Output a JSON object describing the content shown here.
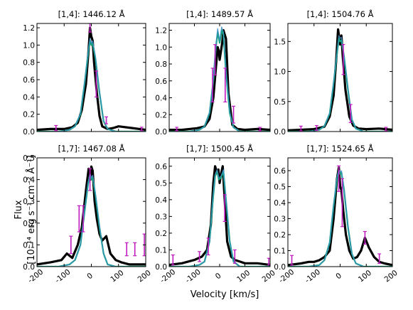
{
  "figure": {
    "xlabel": "Velocity [km/s]",
    "ylabel_line1": "Flux",
    "ylabel_line2": "[10⁻¹⁴ erg s⁻¹ cm⁻² Å⁻¹]"
  },
  "colors": {
    "observed": "#000000",
    "model_teal": "#11a07a",
    "model_blue": "#3f8fc9",
    "error_bars": "#c01cc0"
  },
  "chart_data": [
    {
      "type": "line",
      "title": "[1,4]: 1446.12 Å",
      "xlim": [
        -200,
        200
      ],
      "ylim": [
        0,
        1.25
      ],
      "yticks": [
        0.0,
        0.2,
        0.4,
        0.6,
        0.8,
        1.0,
        1.2
      ],
      "yfmt": 1,
      "xticks": [],
      "grid": false,
      "series": [
        {
          "x": [
            -200,
            -150,
            -100,
            -70,
            -50,
            -35,
            -20,
            -10,
            -5,
            0,
            5,
            10,
            20,
            30,
            40,
            60,
            80,
            100,
            150,
            200
          ],
          "y": [
            0.02,
            0.03,
            0.03,
            0.05,
            0.1,
            0.25,
            0.55,
            0.95,
            1.2,
            1.1,
            1.05,
            0.8,
            0.45,
            0.18,
            0.06,
            0.03,
            0.04,
            0.06,
            0.04,
            0.02
          ]
        },
        {
          "x": [
            -200,
            -120,
            -80,
            -60,
            -40,
            -25,
            -10,
            -5,
            0,
            5,
            15,
            30,
            45,
            60,
            90,
            200
          ],
          "y": [
            0.0,
            0.0,
            0.02,
            0.06,
            0.2,
            0.55,
            0.95,
            1.05,
            1.0,
            1.02,
            0.85,
            0.45,
            0.12,
            0.03,
            0.0,
            0.0
          ]
        },
        {
          "x": [
            -200,
            -120,
            -80,
            -60,
            -40,
            -25,
            -10,
            -5,
            0,
            5,
            15,
            30,
            45,
            60,
            90,
            200
          ],
          "y": [
            0.0,
            0.0,
            0.02,
            0.06,
            0.21,
            0.56,
            0.97,
            1.08,
            1.02,
            1.05,
            0.87,
            0.46,
            0.13,
            0.03,
            0.0,
            0.0
          ]
        }
      ],
      "errorbars": [
        {
          "x": -130,
          "y": 0.04,
          "err": 0.03
        },
        {
          "x": -5,
          "y": 1.2,
          "err": 0.05
        },
        {
          "x": 18,
          "y": 0.55,
          "err": 0.15
        },
        {
          "x": 55,
          "y": 0.13,
          "err": 0.04
        },
        {
          "x": 185,
          "y": 0.03,
          "err": 0.02
        }
      ]
    },
    {
      "type": "line",
      "title": "[1,4]: 1489.57 Å",
      "xlim": [
        -200,
        200
      ],
      "ylim": [
        0,
        1.28
      ],
      "yticks": [
        0.0,
        0.2,
        0.4,
        0.6,
        0.8,
        1.0,
        1.2
      ],
      "yfmt": 1,
      "xticks": [],
      "grid": false,
      "series": [
        {
          "x": [
            -200,
            -150,
            -90,
            -60,
            -40,
            -25,
            -15,
            -8,
            -3,
            0,
            5,
            10,
            15,
            25,
            35,
            50,
            70,
            100,
            150,
            200
          ],
          "y": [
            0.02,
            0.02,
            0.04,
            0.06,
            0.15,
            0.4,
            0.75,
            1.0,
            0.95,
            0.85,
            0.95,
            1.05,
            1.2,
            1.1,
            0.45,
            0.08,
            0.03,
            0.02,
            0.03,
            0.02
          ]
        },
        {
          "x": [
            -200,
            -120,
            -80,
            -60,
            -40,
            -25,
            -15,
            -8,
            0,
            8,
            15,
            25,
            40,
            55,
            80,
            200
          ],
          "y": [
            0.0,
            0.0,
            0.02,
            0.06,
            0.22,
            0.6,
            1.0,
            1.18,
            1.05,
            1.2,
            1.15,
            0.7,
            0.22,
            0.05,
            0.0,
            0.0
          ]
        },
        {
          "x": [
            -200,
            -120,
            -80,
            -60,
            -40,
            -25,
            -15,
            -8,
            0,
            8,
            15,
            25,
            40,
            55,
            80,
            200
          ],
          "y": [
            0.0,
            0.0,
            0.02,
            0.06,
            0.23,
            0.62,
            1.02,
            1.22,
            1.08,
            1.24,
            1.18,
            0.72,
            0.23,
            0.05,
            0.0,
            0.0
          ]
        }
      ],
      "errorbars": [
        {
          "x": -170,
          "y": 0.03,
          "err": 0.02
        },
        {
          "x": -28,
          "y": 0.55,
          "err": 0.2
        },
        {
          "x": -18,
          "y": 0.85,
          "err": 0.18
        },
        {
          "x": 22,
          "y": 0.55,
          "err": 0.2
        },
        {
          "x": 55,
          "y": 0.2,
          "err": 0.1
        },
        {
          "x": 160,
          "y": 0.03,
          "err": 0.02
        }
      ]
    },
    {
      "type": "line",
      "title": "[1,4]: 1504.76 Å",
      "xlim": [
        -200,
        200
      ],
      "ylim": [
        0,
        1.8
      ],
      "yticks": [
        0.0,
        0.5,
        1.0,
        1.5
      ],
      "yfmt": 1,
      "xticks": [],
      "grid": false,
      "series": [
        {
          "x": [
            -200,
            -150,
            -100,
            -60,
            -40,
            -25,
            -15,
            -8,
            -3,
            0,
            5,
            10,
            20,
            35,
            50,
            70,
            100,
            150,
            200
          ],
          "y": [
            0.02,
            0.03,
            0.04,
            0.08,
            0.25,
            0.6,
            1.2,
            1.7,
            1.55,
            1.45,
            1.6,
            1.25,
            0.7,
            0.25,
            0.1,
            0.05,
            0.04,
            0.05,
            0.03
          ]
        },
        {
          "x": [
            -200,
            -120,
            -80,
            -60,
            -40,
            -25,
            -12,
            -5,
            0,
            5,
            15,
            30,
            45,
            60,
            90,
            200
          ],
          "y": [
            0.0,
            0.0,
            0.03,
            0.09,
            0.3,
            0.8,
            1.3,
            1.55,
            1.5,
            1.52,
            1.25,
            0.7,
            0.2,
            0.05,
            0.0,
            0.0
          ]
        },
        {
          "x": [
            -200,
            -120,
            -80,
            -60,
            -40,
            -25,
            -12,
            -5,
            0,
            5,
            15,
            30,
            45,
            60,
            90,
            200
          ],
          "y": [
            0.0,
            0.0,
            0.03,
            0.09,
            0.31,
            0.82,
            1.32,
            1.6,
            1.55,
            1.57,
            1.28,
            0.72,
            0.21,
            0.05,
            0.0,
            0.0
          ]
        }
      ],
      "errorbars": [
        {
          "x": -150,
          "y": 0.05,
          "err": 0.04
        },
        {
          "x": -90,
          "y": 0.06,
          "err": 0.04
        },
        {
          "x": 12,
          "y": 1.2,
          "err": 0.25
        },
        {
          "x": 40,
          "y": 0.3,
          "err": 0.15
        },
        {
          "x": 175,
          "y": 0.04,
          "err": 0.03
        }
      ]
    },
    {
      "type": "line",
      "title": "[1,7]: 1467.08 Å",
      "xlim": [
        -200,
        200
      ],
      "ylim": [
        0,
        0.5
      ],
      "yticks": [
        0.0,
        0.1,
        0.2,
        0.3,
        0.4,
        0.5
      ],
      "yfmt": 1,
      "xticks": [
        -200,
        -100,
        0,
        100,
        200
      ],
      "grid": false,
      "series": [
        {
          "x": [
            -200,
            -150,
            -110,
            -90,
            -70,
            -50,
            -35,
            -20,
            -10,
            -3,
            0,
            5,
            12,
            20,
            30,
            40,
            55,
            70,
            90,
            110,
            140,
            170,
            200
          ],
          "y": [
            0.01,
            0.02,
            0.03,
            0.06,
            0.04,
            0.1,
            0.18,
            0.35,
            0.45,
            0.4,
            0.46,
            0.44,
            0.3,
            0.22,
            0.15,
            0.12,
            0.14,
            0.06,
            0.03,
            0.02,
            0.01,
            0.01,
            0.01
          ]
        },
        {
          "x": [
            -200,
            -120,
            -80,
            -60,
            -40,
            -25,
            -12,
            -5,
            0,
            5,
            15,
            30,
            45,
            60,
            90,
            200
          ],
          "y": [
            0.0,
            0.0,
            0.01,
            0.03,
            0.1,
            0.25,
            0.38,
            0.42,
            0.4,
            0.41,
            0.33,
            0.18,
            0.06,
            0.01,
            0.0,
            0.0
          ]
        },
        {
          "x": [
            -200,
            -120,
            -80,
            -60,
            -40,
            -25,
            -12,
            -5,
            0,
            5,
            15,
            30,
            45,
            60,
            90,
            200
          ],
          "y": [
            0.0,
            0.0,
            0.01,
            0.03,
            0.1,
            0.25,
            0.39,
            0.43,
            0.41,
            0.42,
            0.34,
            0.19,
            0.06,
            0.01,
            0.0,
            0.0
          ]
        }
      ],
      "errorbars": [
        {
          "x": -75,
          "y": 0.1,
          "err": 0.04
        },
        {
          "x": -45,
          "y": 0.22,
          "err": 0.06
        },
        {
          "x": -30,
          "y": 0.22,
          "err": 0.06
        },
        {
          "x": -5,
          "y": 0.4,
          "err": 0.05
        },
        {
          "x": 130,
          "y": 0.08,
          "err": 0.03
        },
        {
          "x": 160,
          "y": 0.08,
          "err": 0.03
        },
        {
          "x": 195,
          "y": 0.1,
          "err": 0.05
        }
      ]
    },
    {
      "type": "line",
      "title": "[1,7]: 1500.45 Å",
      "xlim": [
        -200,
        200
      ],
      "ylim": [
        0,
        0.65
      ],
      "yticks": [
        0.0,
        0.1,
        0.2,
        0.3,
        0.4,
        0.5,
        0.6
      ],
      "yfmt": 1,
      "xticks": [
        -200,
        -100,
        0,
        100,
        200
      ],
      "grid": false,
      "series": [
        {
          "x": [
            -200,
            -150,
            -100,
            -70,
            -50,
            -35,
            -25,
            -18,
            -12,
            -5,
            0,
            5,
            12,
            20,
            30,
            45,
            60,
            80,
            100,
            150,
            200
          ],
          "y": [
            0.01,
            0.02,
            0.04,
            0.06,
            0.1,
            0.25,
            0.5,
            0.6,
            0.57,
            0.58,
            0.5,
            0.55,
            0.6,
            0.4,
            0.15,
            0.06,
            0.04,
            0.03,
            0.02,
            0.02,
            0.01
          ]
        },
        {
          "x": [
            -200,
            -120,
            -80,
            -60,
            -40,
            -28,
            -18,
            -10,
            -3,
            5,
            15,
            25,
            40,
            55,
            80,
            200
          ],
          "y": [
            0.0,
            0.0,
            0.01,
            0.03,
            0.15,
            0.38,
            0.54,
            0.57,
            0.52,
            0.53,
            0.57,
            0.4,
            0.15,
            0.03,
            0.0,
            0.0
          ]
        },
        {
          "x": [
            -200,
            -120,
            -80,
            -60,
            -40,
            -28,
            -18,
            -10,
            -3,
            5,
            15,
            25,
            40,
            55,
            80,
            200
          ],
          "y": [
            0.0,
            0.0,
            0.01,
            0.03,
            0.15,
            0.39,
            0.55,
            0.58,
            0.53,
            0.54,
            0.58,
            0.41,
            0.15,
            0.03,
            0.0,
            0.0
          ]
        }
      ],
      "errorbars": [
        {
          "x": -185,
          "y": 0.04,
          "err": 0.03
        },
        {
          "x": -80,
          "y": 0.06,
          "err": 0.03
        },
        {
          "x": -45,
          "y": 0.12,
          "err": 0.05
        },
        {
          "x": 20,
          "y": 0.35,
          "err": 0.08
        },
        {
          "x": 60,
          "y": 0.06,
          "err": 0.04
        },
        {
          "x": 195,
          "y": 0.03,
          "err": 0.02
        }
      ]
    },
    {
      "type": "line",
      "title": "[1,7]: 1524.65 Å",
      "xlim": [
        -200,
        200
      ],
      "ylim": [
        0,
        0.68
      ],
      "yticks": [
        0.0,
        0.1,
        0.2,
        0.3,
        0.4,
        0.5,
        0.6
      ],
      "yfmt": 1,
      "xticks": [
        -200,
        -100,
        0,
        100,
        200
      ],
      "grid": false,
      "series": [
        {
          "x": [
            -200,
            -150,
            -120,
            -100,
            -80,
            -60,
            -40,
            -25,
            -12,
            -5,
            0,
            5,
            12,
            22,
            35,
            50,
            65,
            80,
            95,
            110,
            130,
            150,
            170,
            200
          ],
          "y": [
            0.01,
            0.02,
            0.03,
            0.03,
            0.04,
            0.06,
            0.1,
            0.3,
            0.55,
            0.62,
            0.5,
            0.48,
            0.35,
            0.2,
            0.1,
            0.05,
            0.06,
            0.1,
            0.18,
            0.12,
            0.06,
            0.03,
            0.02,
            0.01
          ]
        },
        {
          "x": [
            -200,
            -120,
            -80,
            -60,
            -40,
            -25,
            -12,
            -5,
            0,
            5,
            15,
            30,
            45,
            60,
            90,
            200
          ],
          "y": [
            0.0,
            0.0,
            0.01,
            0.04,
            0.15,
            0.38,
            0.55,
            0.6,
            0.58,
            0.59,
            0.48,
            0.25,
            0.08,
            0.02,
            0.0,
            0.0
          ]
        },
        {
          "x": [
            -200,
            -120,
            -80,
            -60,
            -40,
            -25,
            -12,
            -5,
            0,
            5,
            15,
            30,
            45,
            60,
            90,
            200
          ],
          "y": [
            0.0,
            0.0,
            0.01,
            0.04,
            0.15,
            0.39,
            0.56,
            0.61,
            0.59,
            0.6,
            0.49,
            0.26,
            0.08,
            0.02,
            0.0,
            0.0
          ]
        }
      ],
      "errorbars": [
        {
          "x": -185,
          "y": 0.04,
          "err": 0.03
        },
        {
          "x": -5,
          "y": 0.55,
          "err": 0.08
        },
        {
          "x": 8,
          "y": 0.4,
          "err": 0.15
        },
        {
          "x": 95,
          "y": 0.18,
          "err": 0.04
        },
        {
          "x": 150,
          "y": 0.05,
          "err": 0.03
        }
      ]
    }
  ]
}
